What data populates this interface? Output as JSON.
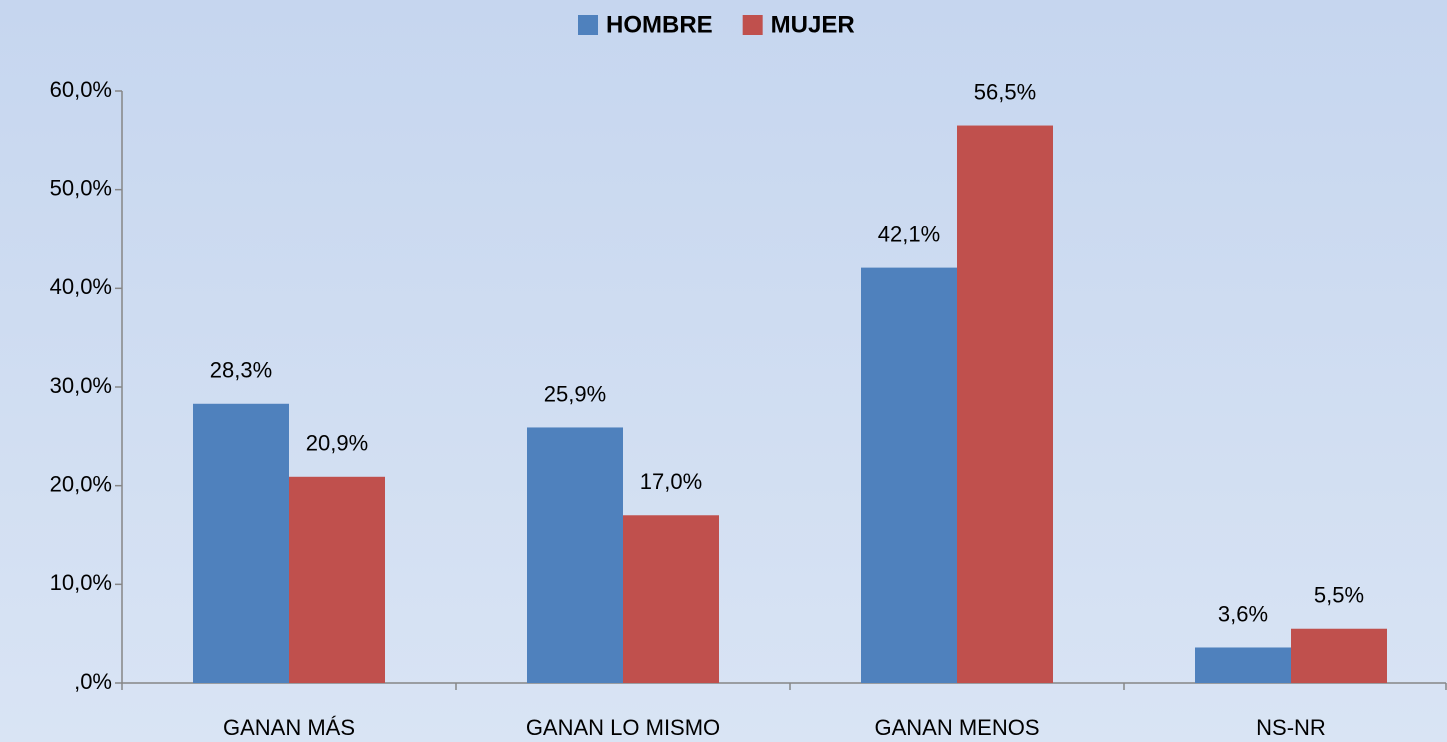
{
  "chart_data": {
    "type": "bar",
    "categories": [
      "GANAN MÁS",
      "GANAN LO MISMO",
      "GANAN MENOS",
      "NS-NR"
    ],
    "series": [
      {
        "name": "HOMBRE",
        "color": "#4f81bd",
        "values": [
          28.3,
          25.9,
          42.1,
          3.6
        ],
        "value_labels": [
          "28,3%",
          "25,9%",
          "42,1%",
          "3,6%"
        ]
      },
      {
        "name": "MUJER",
        "color": "#c0504d",
        "values": [
          20.9,
          17.0,
          56.5,
          5.5
        ],
        "value_labels": [
          "20,9%",
          "17,0%",
          "56,5%",
          "5,5%"
        ]
      }
    ],
    "ylim": [
      0,
      60
    ],
    "yticks": [
      {
        "value": 0,
        "label": ",0%"
      },
      {
        "value": 10,
        "label": "10,0%"
      },
      {
        "value": 20,
        "label": "20,0%"
      },
      {
        "value": 30,
        "label": "30,0%"
      },
      {
        "value": 40,
        "label": "40,0%"
      },
      {
        "value": 50,
        "label": "50,0%"
      },
      {
        "value": 60,
        "label": "60,0%"
      }
    ],
    "legend": "top",
    "grid": false
  }
}
